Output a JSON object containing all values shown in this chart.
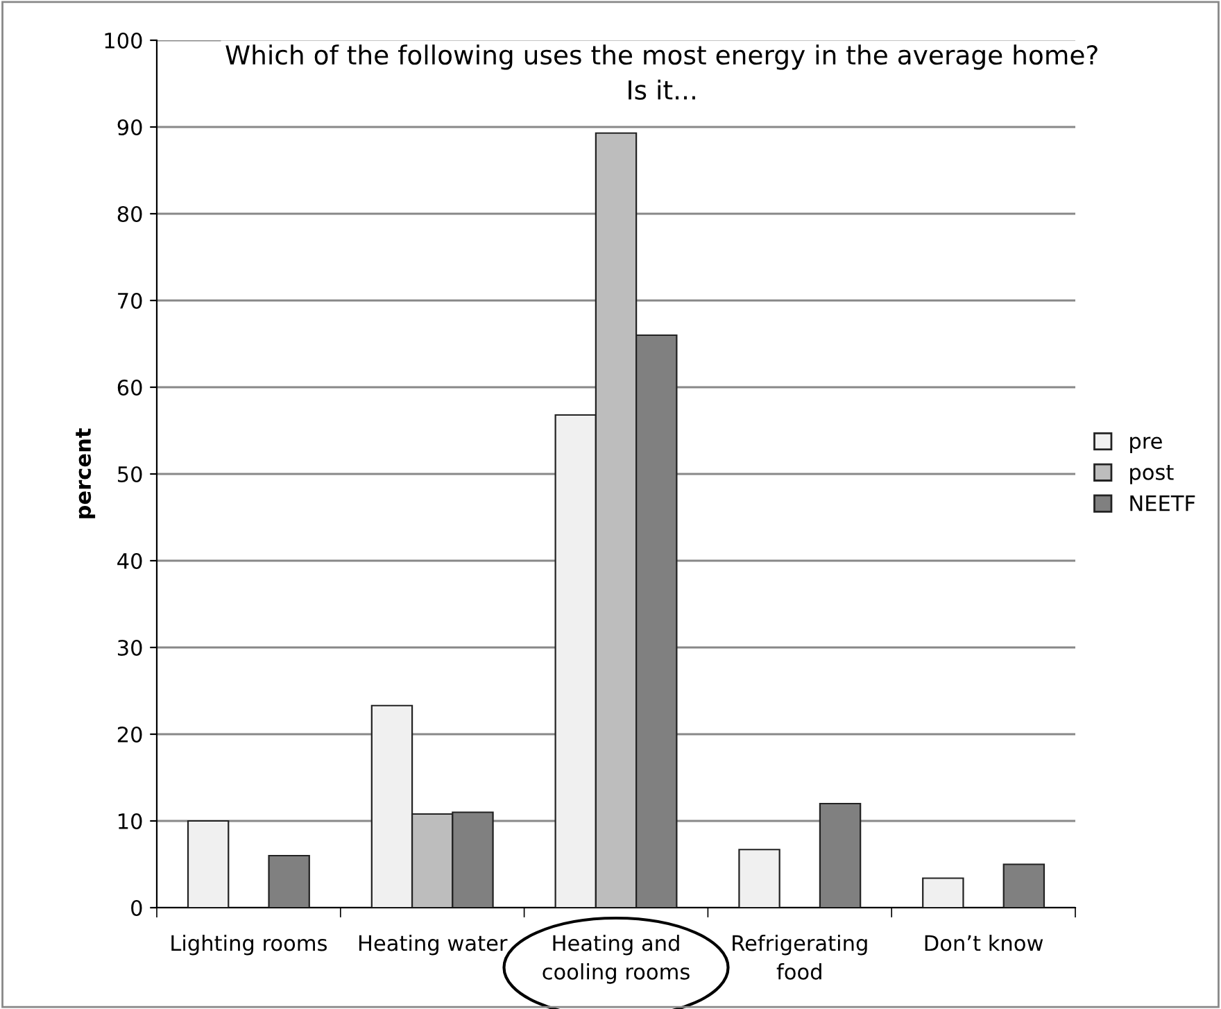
{
  "chart_data": {
    "type": "bar",
    "title": "Which of the following uses the most energy in the average home?\nIs it...",
    "ylabel": "percent",
    "categories": [
      "Lighting rooms",
      "Heating water",
      "Heating and\ncooling rooms",
      "Refrigerating\nfood",
      "Don’t know"
    ],
    "series": [
      {
        "name": "pre",
        "color": "#f0f0f0",
        "values": [
          10,
          23.3,
          56.8,
          6.7,
          3.4
        ]
      },
      {
        "name": "post",
        "color": "#bdbdbd",
        "values": [
          null,
          10.8,
          89.3,
          null,
          null
        ]
      },
      {
        "name": "NEETF",
        "color": "#808080",
        "values": [
          6,
          11,
          66,
          12,
          5
        ]
      }
    ],
    "ylim": [
      0,
      100
    ],
    "yticks": [
      0,
      10,
      20,
      30,
      40,
      50,
      60,
      70,
      80,
      90,
      100
    ],
    "grid": "y",
    "legend": "right"
  }
}
